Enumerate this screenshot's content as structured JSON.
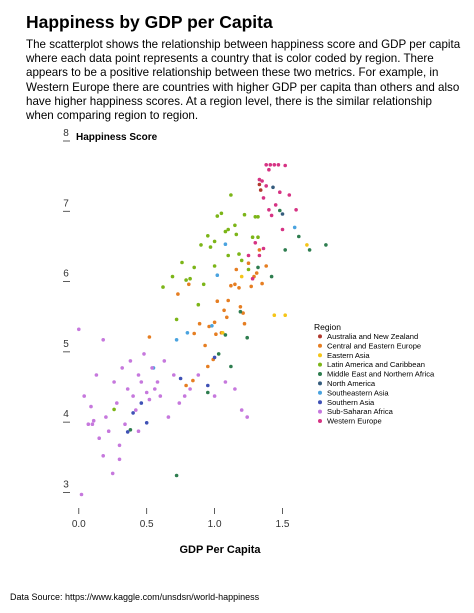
{
  "title": "Happiness by GDP per Capita",
  "description": "The scatterplot shows the relationship between happiness score and GDP per capita where each data point represents a country that is color coded by region. There appears to be a positive relationship between these two metrics. For example, in Western Europe there are countries with higher GDP per capita than others and also have higher happiness scores. At a region level, there is the similar relationship when comparing region to region.",
  "source": "Data Source:  https://www.kaggle.com/unsdsn/world-happiness",
  "chart_data": {
    "type": "scatter",
    "ylabel": "Happiness Score",
    "xlabel": "GDP Per Capita",
    "xlim": [
      -0.05,
      1.85
    ],
    "ylim": [
      2.75,
      8.0
    ],
    "xticks": [
      0.0,
      0.5,
      1.0,
      1.5
    ],
    "xtick_labels": [
      "0.0",
      "0.5",
      "1.0",
      "1.5"
    ],
    "yticks": [
      3,
      4,
      5,
      6,
      7,
      8
    ],
    "ytick_labels": [
      "3",
      "4",
      "5",
      "6",
      "7",
      "8"
    ],
    "grid": false,
    "legend": {
      "title": "Region",
      "placement": "right"
    },
    "series": [
      {
        "name": "Australia and New Zealand",
        "color": "#b03a2e",
        "points": [
          [
            1.34,
            7.23
          ],
          [
            1.33,
            7.31
          ]
        ]
      },
      {
        "name": "Central and Eastern Europe",
        "color": "#e67e22",
        "points": [
          [
            0.52,
            5.14
          ],
          [
            0.73,
            5.75
          ],
          [
            0.81,
            5.89
          ],
          [
            0.85,
            5.19
          ],
          [
            0.89,
            5.33
          ],
          [
            0.93,
            5.02
          ],
          [
            0.95,
            4.72
          ],
          [
            0.96,
            5.29
          ],
          [
            0.99,
            4.82
          ],
          [
            1.0,
            5.35
          ],
          [
            1.01,
            5.18
          ],
          [
            1.02,
            5.65
          ],
          [
            1.05,
            5.2
          ],
          [
            1.07,
            5.52
          ],
          [
            1.09,
            5.42
          ],
          [
            1.1,
            5.66
          ],
          [
            1.12,
            5.87
          ],
          [
            1.15,
            5.89
          ],
          [
            1.16,
            6.1
          ],
          [
            1.18,
            5.84
          ],
          [
            1.19,
            5.57
          ],
          [
            1.21,
            5.48
          ],
          [
            1.22,
            5.33
          ],
          [
            1.25,
            6.19
          ],
          [
            1.27,
            5.86
          ],
          [
            1.29,
            6.0
          ],
          [
            1.31,
            6.05
          ],
          [
            1.33,
            6.38
          ],
          [
            1.35,
            5.9
          ],
          [
            1.38,
            6.15
          ],
          [
            0.79,
            4.45
          ],
          [
            0.84,
            4.52
          ]
        ]
      },
      {
        "name": "Eastern Asia",
        "color": "#f5c518",
        "points": [
          [
            1.06,
            5.2
          ],
          [
            1.2,
            6.0
          ],
          [
            1.44,
            5.45
          ],
          [
            1.52,
            5.45
          ],
          [
            1.68,
            6.45
          ]
        ]
      },
      {
        "name": "Latin America and Caribbean",
        "color": "#7cb518",
        "points": [
          [
            0.26,
            4.11
          ],
          [
            0.62,
            5.85
          ],
          [
            0.69,
            6.0
          ],
          [
            0.72,
            5.39
          ],
          [
            0.76,
            6.2
          ],
          [
            0.79,
            5.95
          ],
          [
            0.82,
            5.97
          ],
          [
            0.85,
            6.13
          ],
          [
            0.88,
            5.6
          ],
          [
            0.9,
            6.45
          ],
          [
            0.92,
            5.89
          ],
          [
            0.95,
            6.58
          ],
          [
            0.97,
            6.42
          ],
          [
            1.0,
            6.5
          ],
          [
            1.02,
            6.86
          ],
          [
            1.05,
            6.9
          ],
          [
            1.08,
            6.64
          ],
          [
            1.1,
            6.3
          ],
          [
            1.12,
            7.16
          ],
          [
            1.15,
            6.73
          ],
          [
            1.18,
            6.32
          ],
          [
            1.2,
            6.23
          ],
          [
            1.22,
            6.88
          ],
          [
            1.25,
            6.1
          ],
          [
            1.28,
            6.56
          ],
          [
            1.3,
            6.85
          ],
          [
            1.32,
            6.56
          ],
          [
            1.0,
            6.15
          ],
          [
            1.1,
            6.67
          ],
          [
            1.16,
            6.6
          ],
          [
            1.32,
            6.85
          ]
        ]
      },
      {
        "name": "Middle East and Northern Africa",
        "color": "#2e7d4f",
        "points": [
          [
            0.38,
            3.82
          ],
          [
            0.72,
            3.17
          ],
          [
            0.95,
            4.35
          ],
          [
            1.03,
            4.9
          ],
          [
            1.08,
            5.17
          ],
          [
            1.12,
            4.72
          ],
          [
            1.19,
            5.5
          ],
          [
            1.24,
            5.13
          ],
          [
            1.32,
            6.13
          ],
          [
            1.42,
            6.0
          ],
          [
            1.48,
            6.94
          ],
          [
            1.52,
            6.38
          ],
          [
            1.62,
            6.57
          ],
          [
            1.7,
            6.38
          ],
          [
            1.82,
            6.45
          ]
        ]
      },
      {
        "name": "North America",
        "color": "#355c7d",
        "points": [
          [
            1.43,
            7.27
          ],
          [
            1.5,
            6.89
          ]
        ]
      },
      {
        "name": "Southeastern Asia",
        "color": "#4aa3df",
        "points": [
          [
            0.55,
            4.7
          ],
          [
            0.72,
            5.1
          ],
          [
            0.8,
            5.2
          ],
          [
            0.98,
            5.3
          ],
          [
            1.02,
            6.02
          ],
          [
            1.08,
            6.46
          ],
          [
            1.59,
            6.7
          ]
        ]
      },
      {
        "name": "Southern Asia",
        "color": "#3f51b5",
        "points": [
          [
            0.36,
            3.79
          ],
          [
            0.4,
            4.06
          ],
          [
            0.46,
            4.2
          ],
          [
            0.5,
            3.92
          ],
          [
            0.75,
            4.55
          ],
          [
            0.95,
            4.45
          ],
          [
            1.0,
            4.85
          ]
        ]
      },
      {
        "name": "Sub-Saharan Africa",
        "color": "#c678dd",
        "points": [
          [
            0.0,
            5.25
          ],
          [
            0.02,
            2.9
          ],
          [
            0.04,
            4.3
          ],
          [
            0.07,
            3.9
          ],
          [
            0.09,
            4.15
          ],
          [
            0.11,
            3.95
          ],
          [
            0.13,
            4.6
          ],
          [
            0.15,
            3.7
          ],
          [
            0.18,
            3.45
          ],
          [
            0.2,
            4.0
          ],
          [
            0.22,
            3.8
          ],
          [
            0.25,
            3.2
          ],
          [
            0.26,
            4.5
          ],
          [
            0.28,
            4.2
          ],
          [
            0.3,
            3.6
          ],
          [
            0.32,
            4.7
          ],
          [
            0.34,
            3.9
          ],
          [
            0.36,
            4.4
          ],
          [
            0.38,
            4.8
          ],
          [
            0.4,
            4.3
          ],
          [
            0.42,
            4.1
          ],
          [
            0.44,
            4.6
          ],
          [
            0.46,
            4.5
          ],
          [
            0.48,
            4.9
          ],
          [
            0.5,
            4.35
          ],
          [
            0.52,
            4.25
          ],
          [
            0.54,
            4.7
          ],
          [
            0.56,
            4.4
          ],
          [
            0.58,
            4.5
          ],
          [
            0.6,
            4.3
          ],
          [
            0.63,
            4.8
          ],
          [
            0.66,
            4.0
          ],
          [
            0.7,
            4.6
          ],
          [
            0.74,
            4.2
          ],
          [
            0.78,
            4.3
          ],
          [
            0.82,
            4.4
          ],
          [
            0.88,
            4.6
          ],
          [
            1.0,
            4.3
          ],
          [
            1.08,
            4.5
          ],
          [
            1.15,
            4.4
          ],
          [
            1.2,
            4.1
          ],
          [
            1.24,
            4.0
          ],
          [
            0.18,
            5.1
          ],
          [
            0.3,
            3.4
          ],
          [
            0.44,
            3.8
          ],
          [
            0.1,
            3.9
          ]
        ]
      },
      {
        "name": "Western Europe",
        "color": "#d63384",
        "points": [
          [
            1.38,
            7.59
          ],
          [
            1.4,
            7.52
          ],
          [
            1.41,
            7.59
          ],
          [
            1.44,
            7.59
          ],
          [
            1.47,
            7.59
          ],
          [
            1.52,
            7.58
          ],
          [
            1.33,
            7.38
          ],
          [
            1.35,
            7.36
          ],
          [
            1.38,
            7.29
          ],
          [
            1.36,
            7.12
          ],
          [
            1.4,
            6.95
          ],
          [
            1.42,
            6.87
          ],
          [
            1.45,
            7.02
          ],
          [
            1.48,
            7.2
          ],
          [
            1.5,
            6.67
          ],
          [
            1.55,
            7.16
          ],
          [
            1.6,
            6.95
          ],
          [
            1.3,
            6.48
          ],
          [
            1.33,
            6.3
          ],
          [
            1.36,
            6.4
          ],
          [
            1.25,
            6.3
          ],
          [
            1.28,
            5.97
          ]
        ]
      }
    ]
  }
}
